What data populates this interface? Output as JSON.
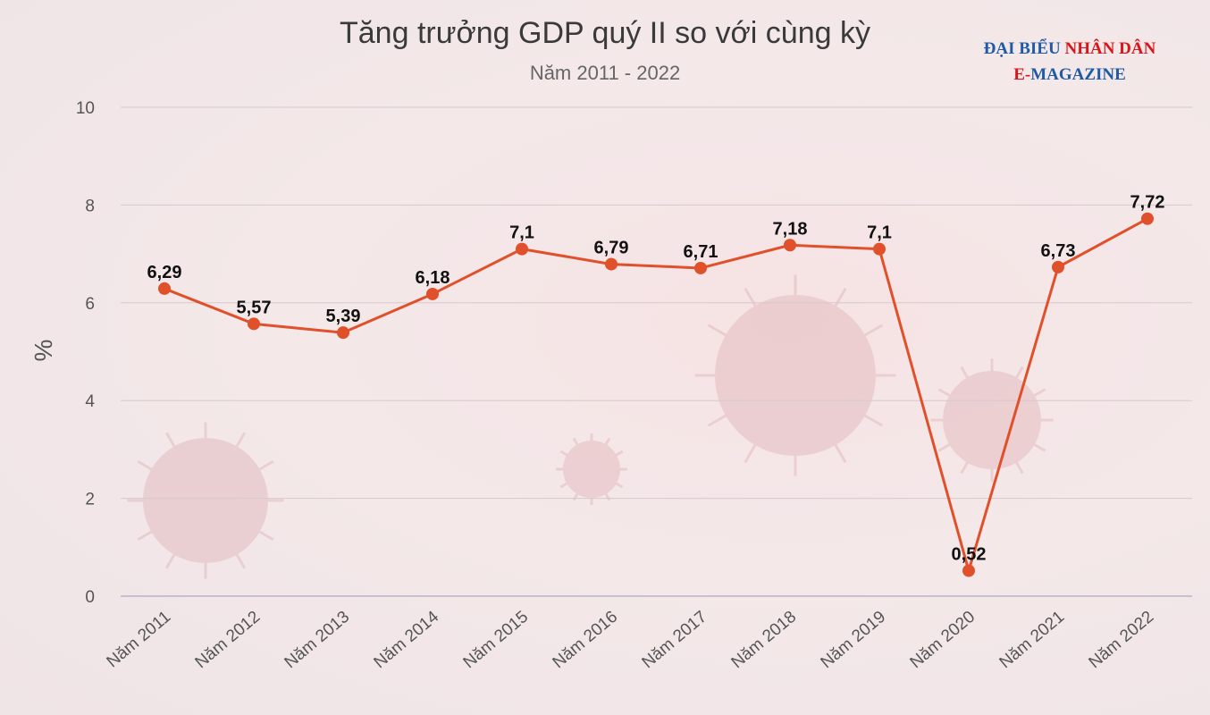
{
  "logo": {
    "line1_part1": "ĐẠI BIỂU",
    "line1_part2": "NHÂN DÂN",
    "line2_part1": "E-",
    "line2_part2": "MAGAZINE"
  },
  "colors": {
    "line": "#e0502a",
    "logo_blue": "#1f5aa6",
    "logo_red": "#d9141b"
  },
  "chart_data": {
    "type": "line",
    "title": "Tăng trưởng GDP quý II so với cùng kỳ",
    "subtitle": "Năm 2011 - 2022",
    "xlabel": "",
    "ylabel": "%",
    "ylim": [
      0,
      10
    ],
    "yticks": [
      0,
      2,
      4,
      6,
      8,
      10
    ],
    "grid": true,
    "categories": [
      "Năm 2011",
      "Năm 2012",
      "Năm 2013",
      "Năm 2014",
      "Năm 2015",
      "Năm 2016",
      "Năm 2017",
      "Năm 2018",
      "Năm 2019",
      "Năm 2020",
      "Năm 2021",
      "Năm 2022"
    ],
    "values": [
      6.29,
      5.57,
      5.39,
      6.18,
      7.1,
      6.79,
      6.71,
      7.18,
      7.1,
      0.52,
      6.73,
      7.72
    ],
    "data_labels": [
      "6,29",
      "5,57",
      "5,39",
      "6,18",
      "7,1",
      "6,79",
      "6,71",
      "7,18",
      "7,1",
      "0,52",
      "6,73",
      "7,72"
    ]
  }
}
